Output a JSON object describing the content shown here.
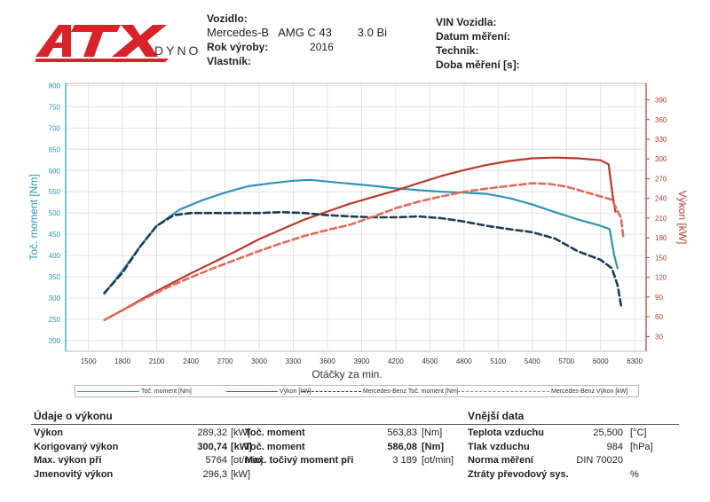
{
  "brand": {
    "logo_text": "ATX",
    "logo_sub": "DYNO"
  },
  "vehicle": {
    "label_vehicle": "Vozidlo:",
    "make": "Mercedes-B",
    "model": "AMG C 43",
    "engine": "3.0 Bi",
    "label_year": "Rok výroby:",
    "year": "2016",
    "label_owner": "Vlastník:",
    "owner": ""
  },
  "info": {
    "label_vin": "VIN Vozidla:",
    "label_date": "Datum měření:",
    "label_tech": "Technik:",
    "label_duration": "Doba měření [s]:"
  },
  "chart_data": {
    "type": "line",
    "xlabel": "Otáčky za min.",
    "ylabel_left": "Toč. moment [Nm]",
    "ylabel_right": "Výkon [kW]",
    "xlim": [
      1300,
      6400
    ],
    "ylim_left": [
      175,
      805
    ],
    "ylim_right": [
      7.5,
      415
    ],
    "xticks": [
      1500,
      1800,
      2100,
      2400,
      2700,
      3000,
      3300,
      3600,
      3900,
      4200,
      4500,
      4800,
      5100,
      5400,
      5700,
      6000,
      6300
    ],
    "yticks_left": [
      200,
      250,
      300,
      350,
      400,
      450,
      500,
      550,
      600,
      650,
      700,
      750,
      800
    ],
    "yticks_right": [
      30,
      60,
      90,
      120,
      150,
      180,
      210,
      240,
      270,
      300,
      330,
      360,
      390
    ],
    "grid": true,
    "legend_position": "bottom",
    "series": [
      {
        "name": "Toč. moment [Nm]",
        "axis": "left",
        "color": "#2e94b8",
        "style": "solid",
        "x": [
          1640,
          1800,
          1950,
          2100,
          2300,
          2500,
          2700,
          2900,
          3100,
          3300,
          3450,
          3600,
          3800,
          4000,
          4200,
          4400,
          4600,
          4800,
          5000,
          5200,
          5400,
          5600,
          5800,
          6000,
          6080,
          6120,
          6150
        ],
        "y": [
          310,
          365,
          420,
          470,
          508,
          530,
          548,
          563,
          570,
          576,
          578,
          574,
          569,
          564,
          558,
          554,
          550,
          548,
          545,
          535,
          520,
          502,
          485,
          470,
          462,
          400,
          370
        ]
      },
      {
        "name": "Výkon [kW]",
        "axis": "left_scaled_kw",
        "color": "#b83a2c",
        "style": "solid",
        "x": [
          1640,
          1800,
          2000,
          2200,
          2400,
          2600,
          2800,
          3000,
          3200,
          3400,
          3600,
          3800,
          4000,
          4200,
          4400,
          4600,
          4800,
          5000,
          5200,
          5400,
          5600,
          5800,
          6000,
          6070,
          6110,
          6130
        ],
        "y": [
          55,
          70,
          90,
          108,
          126,
          143,
          160,
          178,
          193,
          208,
          220,
          232,
          242,
          252,
          263,
          274,
          283,
          291,
          297,
          301,
          302,
          301,
          298,
          292,
          240,
          220
        ]
      },
      {
        "name": "Mercedes-Benz Toč. moment [Nm]",
        "axis": "left",
        "color": "#1d3c55",
        "style": "dashed",
        "x": [
          1640,
          1800,
          1950,
          2100,
          2250,
          2400,
          2600,
          2800,
          3000,
          3200,
          3400,
          3600,
          3800,
          4000,
          4200,
          4400,
          4600,
          4800,
          5000,
          5200,
          5400,
          5600,
          5800,
          6000,
          6100,
          6150,
          6180
        ],
        "y": [
          312,
          360,
          420,
          470,
          495,
          500,
          500,
          500,
          500,
          502,
          500,
          495,
          492,
          490,
          490,
          492,
          488,
          480,
          470,
          462,
          455,
          440,
          410,
          390,
          370,
          330,
          282
        ]
      },
      {
        "name": "Mercedes-Benz Výkon [kW]",
        "axis": "left_scaled_kw",
        "color": "#e36a5a",
        "style": "dashed",
        "x": [
          1640,
          1800,
          2000,
          2200,
          2400,
          2600,
          2800,
          3000,
          3200,
          3400,
          3600,
          3800,
          4000,
          4200,
          4400,
          4600,
          4800,
          5000,
          5200,
          5400,
          5550,
          5700,
          5900,
          6100,
          6180,
          6200
        ],
        "y": [
          55,
          70,
          88,
          105,
          120,
          134,
          147,
          160,
          172,
          183,
          192,
          200,
          212,
          225,
          235,
          243,
          250,
          255,
          259,
          263,
          262,
          258,
          248,
          238,
          210,
          180
        ]
      }
    ]
  },
  "legend": [
    {
      "label": "Toč. moment [Nm]",
      "color": "#2e94b8",
      "style": "solid"
    },
    {
      "label": "Výkon [kW]",
      "color": "#b83a2c",
      "style": "solid"
    },
    {
      "label": "Mercedes-Benz Toč. moment [Nm]",
      "color": "#1d3c55",
      "style": "dashed"
    },
    {
      "label": "Mercedes-Benz Výkon [kW]",
      "color": "#e36a5a",
      "style": "dashed"
    }
  ],
  "performance": {
    "title": "Údaje o výkonu",
    "rows": [
      {
        "label": "Výkon",
        "value": "289,32",
        "unit": "[kW]",
        "bold": false
      },
      {
        "label": "Korigovaný výkon",
        "value": "300,74",
        "unit": "[kW]",
        "bold": true
      },
      {
        "label": "Max. výkon při",
        "value": "5764",
        "unit": "[ot/min]",
        "bold": false
      },
      {
        "label": "Jmenovitý výkon",
        "value": "296,3",
        "unit": "[kW]",
        "bold": false
      }
    ],
    "torque_rows": [
      {
        "label": "Toč. moment",
        "value": "563,83",
        "unit": "[Nm]",
        "bold": false
      },
      {
        "label": "Toč. moment",
        "value": "586,08",
        "unit": "[Nm]",
        "bold": true
      },
      {
        "label": "Max. točivý moment při",
        "value": "3 189",
        "unit": "[ot/min]",
        "bold": false
      }
    ]
  },
  "external": {
    "title": "Vnější data",
    "rows": [
      {
        "label": "Teplota vzduchu",
        "value": "25,500",
        "unit": "[°C]"
      },
      {
        "label": "Tlak vzduchu",
        "value": "984",
        "unit": "[hPa]"
      },
      {
        "label": "Norma měření",
        "value": "DIN 70020",
        "unit": ""
      },
      {
        "label": "Ztráty převodový sys.",
        "value": "",
        "unit": "%"
      }
    ]
  }
}
